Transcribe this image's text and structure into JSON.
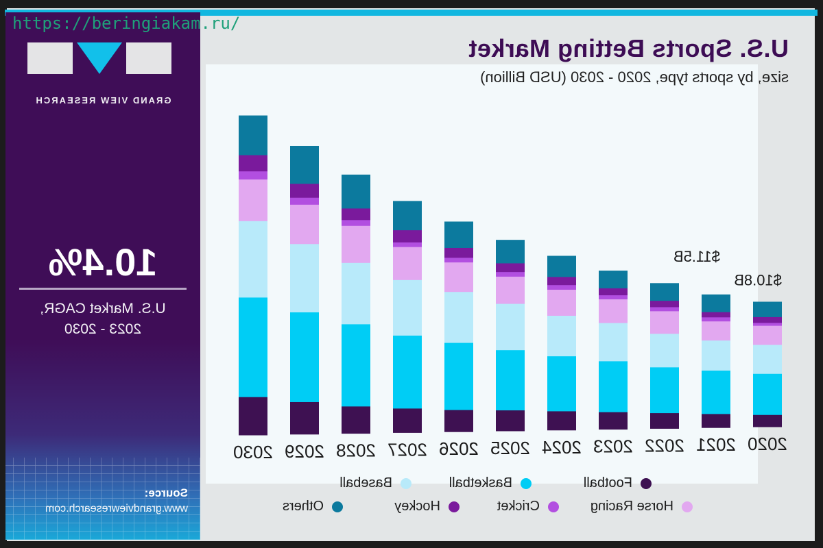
{
  "watermark": "https://beringiakam.ru/",
  "panel": {
    "logo_text": "GRAND VIEW RESEARCH",
    "cagr_value": "10.4%",
    "cagr_label_line1": "U.S. Market CAGR,",
    "cagr_label_line2": "2023 - 2030",
    "source_label": "Source:",
    "source_url": "www.grandviewresearch.com"
  },
  "colors": {
    "panel": "#3f0d57",
    "accent": "#12b7e0"
  },
  "chart_data": {
    "type": "bar",
    "stacked": true,
    "title": "U.S. Sports Betting Market",
    "subtitle": "size, by sports type, 2020 - 2030 (USD Billion)",
    "xlabel": "",
    "ylabel": "",
    "ylim": [
      0,
      28
    ],
    "grid": false,
    "legend_position": "bottom",
    "categories": [
      "2020",
      "2021",
      "2022",
      "2023",
      "2024",
      "2025",
      "2026",
      "2027",
      "2028",
      "2029",
      "2030"
    ],
    "series": [
      {
        "name": "Football",
        "color": "#3e1152",
        "values": [
          1.05,
          1.2,
          1.35,
          1.5,
          1.65,
          1.8,
          1.9,
          2.1,
          2.35,
          2.8,
          3.3
        ]
      },
      {
        "name": "Basketball",
        "color": "#00cdf5",
        "values": [
          3.55,
          3.75,
          3.95,
          4.4,
          4.75,
          5.2,
          5.8,
          6.3,
          7.1,
          7.75,
          8.6
        ]
      },
      {
        "name": "Baseball",
        "color": "#b8eafa",
        "values": [
          2.5,
          2.6,
          2.9,
          3.3,
          3.5,
          4.0,
          4.4,
          4.8,
          5.3,
          5.9,
          6.6
        ]
      },
      {
        "name": "Horse Racing",
        "color": "#e2a8f0",
        "values": [
          1.65,
          1.65,
          1.95,
          2.05,
          2.25,
          2.35,
          2.55,
          2.85,
          3.2,
          3.4,
          3.6
        ]
      },
      {
        "name": "Cricket",
        "color": "#b24fe0",
        "values": [
          0.25,
          0.35,
          0.35,
          0.35,
          0.4,
          0.4,
          0.4,
          0.4,
          0.5,
          0.6,
          0.7
        ]
      },
      {
        "name": "Hockey",
        "color": "#7a1a9c",
        "values": [
          0.5,
          0.45,
          0.55,
          0.6,
          0.7,
          0.75,
          0.85,
          1.05,
          1.0,
          1.2,
          1.4
        ]
      },
      {
        "name": "Others",
        "color": "#0c7a9e",
        "values": [
          1.3,
          1.5,
          1.5,
          1.5,
          1.8,
          2.0,
          2.25,
          2.5,
          2.9,
          3.25,
          3.4
        ]
      }
    ],
    "data_labels": [
      {
        "category": "2020",
        "text": "$10.8B"
      },
      {
        "category": "2021",
        "text": "$11.5B"
      }
    ],
    "legend": [
      "Football",
      "Basketball",
      "Baseball",
      "Horse Racing",
      "Cricket",
      "Hockey",
      "Others"
    ]
  }
}
